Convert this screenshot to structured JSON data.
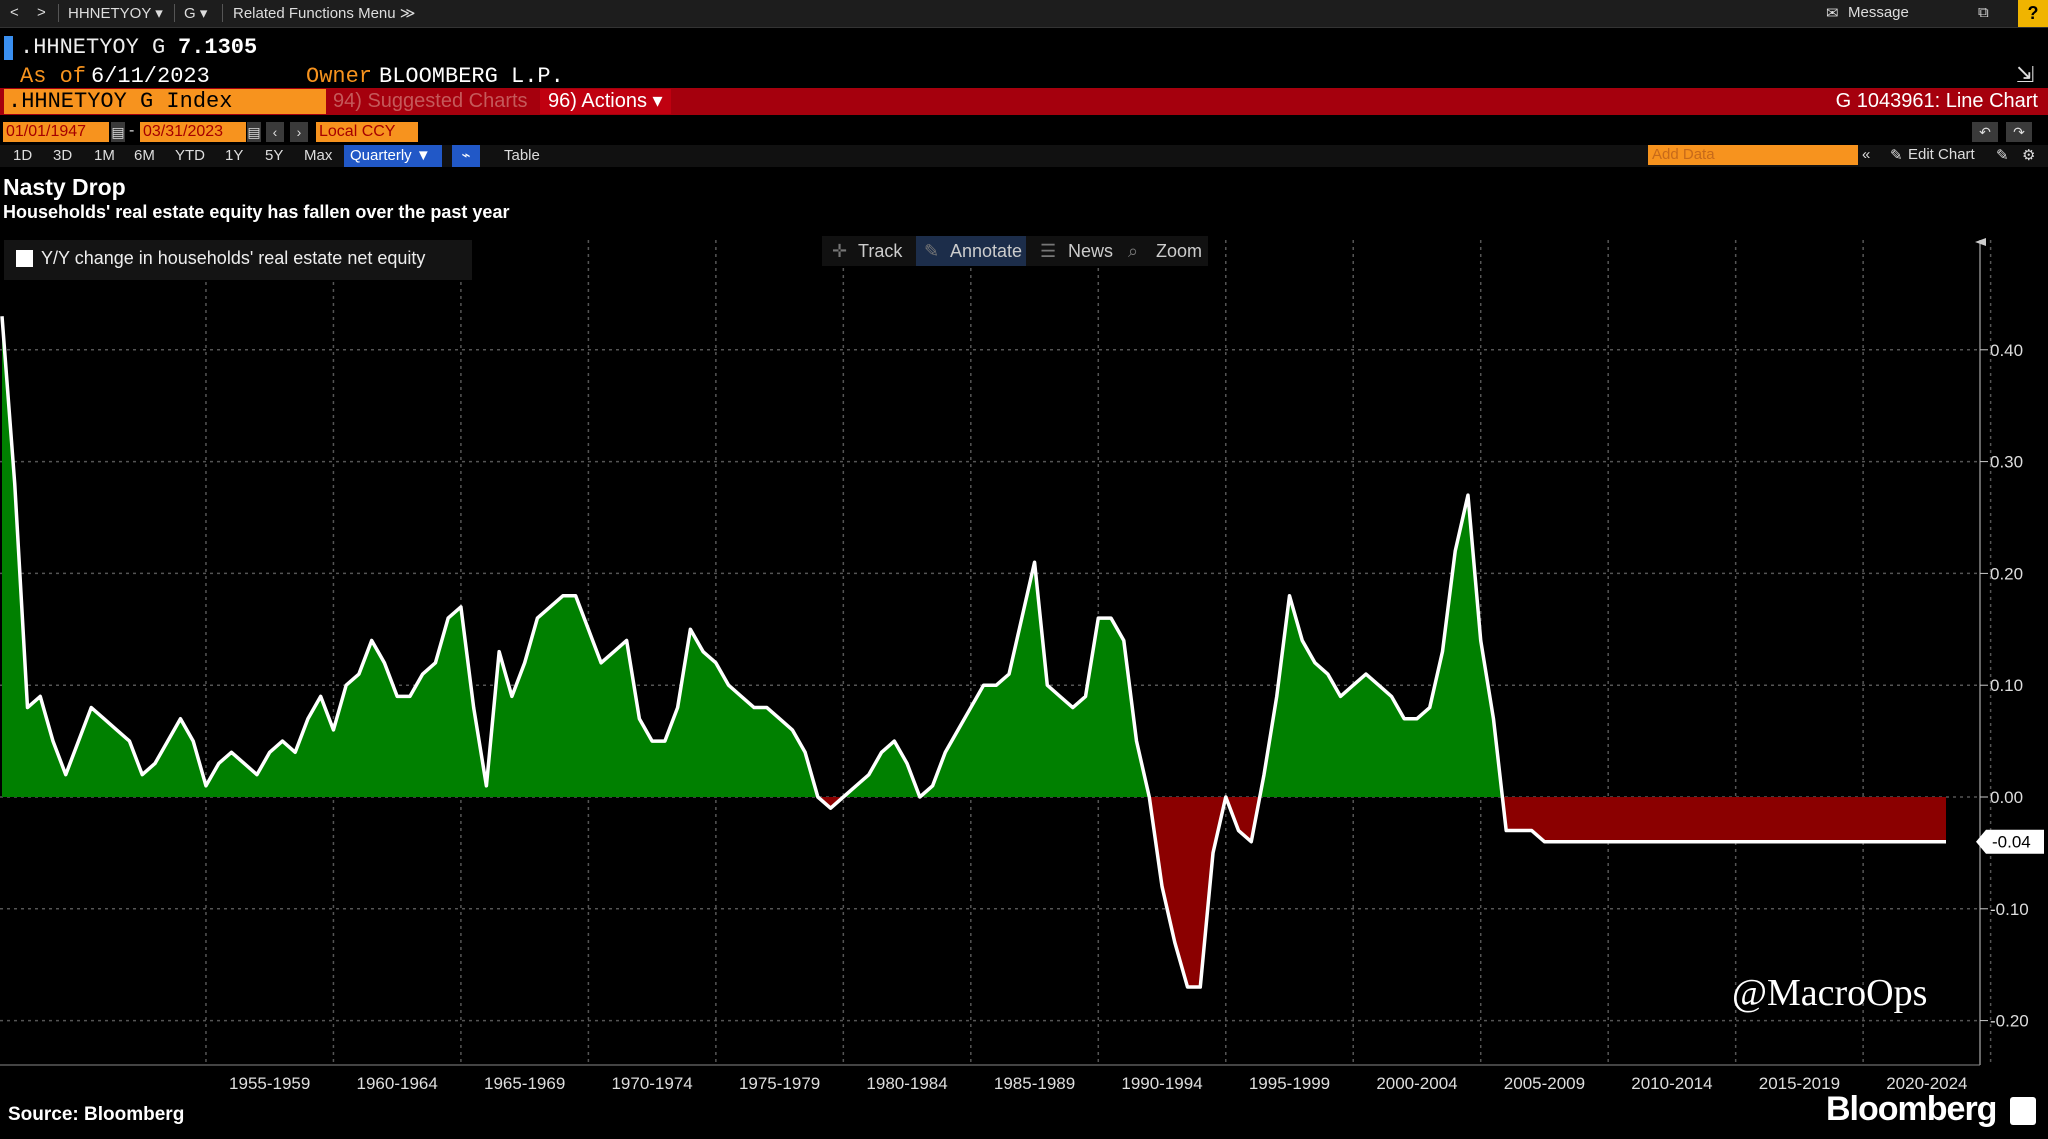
{
  "toolbar": {
    "nav_back": "<",
    "nav_fwd": ">",
    "ticker_menu": "HHNETYOY ▾",
    "func_menu": "G ▾",
    "related": "Related Functions Menu ≫",
    "message": "Message",
    "help": "?"
  },
  "header": {
    "ticker": ".HHNETYOY G",
    "value": "7.1305",
    "asof_label": "As of",
    "asof_date": "6/11/2023",
    "owner_label": "Owner",
    "owner": "BLOOMBERG L.P.",
    "index_name": ".HHNETYOY G Index",
    "suggested": "94) Suggested Charts",
    "actions": "96) Actions ▾",
    "chart_id": "G 1043961: Line Chart"
  },
  "controls": {
    "start_date": "01/01/1947",
    "dash": "-",
    "end_date": "03/31/2023",
    "currency": "Local CCY",
    "ranges": [
      "1D",
      "3D",
      "1M",
      "6M",
      "YTD",
      "1Y",
      "5Y",
      "Max"
    ],
    "frequency": "Quarterly ▼",
    "table": "Table",
    "add_data_placeholder": "Add Data",
    "edit_chart": "Edit Chart"
  },
  "chart_tools": {
    "track": "Track",
    "annotate": "Annotate",
    "news": "News",
    "zoom": "Zoom"
  },
  "chart_data": {
    "type": "area",
    "title": "Nasty Drop",
    "subtitle": "Households' real estate equity has fallen over the past year",
    "series_name": "Y/Y change in households' real estate net equity",
    "x_labels": [
      "1955-1959",
      "1960-1964",
      "1965-1969",
      "1970-1974",
      "1975-1979",
      "1980-1984",
      "1985-1989",
      "1990-1994",
      "1995-1999",
      "2000-2004",
      "2005-2009",
      "2010-2014",
      "2015-2019",
      "2020-2024"
    ],
    "y_ticks": [
      0.4,
      0.3,
      0.2,
      0.1,
      0.0,
      -0.1,
      -0.2
    ],
    "y_tick_labels": [
      "0.40",
      "0.30",
      "0.20",
      "0.10",
      "0.00",
      "-0.10",
      "-0.20"
    ],
    "ylim": [
      -0.25,
      0.5
    ],
    "last_value_label": "-0.04",
    "grid": true,
    "positive_color": "#008000",
    "negative_color": "#8b0000",
    "line_color": "#ffffff",
    "x": [
      1947.0,
      1947.5,
      1948.0,
      1948.5,
      1949.0,
      1949.5,
      1950.0,
      1950.5,
      1951.0,
      1951.5,
      1952.0,
      1952.5,
      1953.0,
      1953.5,
      1954.0,
      1954.5,
      1955.0,
      1955.5,
      1956.0,
      1956.5,
      1957.0,
      1957.5,
      1958.0,
      1958.5,
      1959.0,
      1959.5,
      1960.0,
      1960.5,
      1961.0,
      1961.5,
      1962.0,
      1962.5,
      1963.0,
      1963.5,
      1964.0,
      1964.5,
      1965.0,
      1965.5,
      1966.0,
      1966.5,
      1967.0,
      1967.5,
      1968.0,
      1968.5,
      1969.0,
      1969.5,
      1970.0,
      1970.5,
      1971.0,
      1971.5,
      1972.0,
      1972.5,
      1973.0,
      1973.5,
      1974.0,
      1974.5,
      1975.0,
      1975.5,
      1976.0,
      1976.5,
      1977.0,
      1977.5,
      1978.0,
      1978.5,
      1979.0,
      1979.5,
      1980.0,
      1980.5,
      1981.0,
      1981.5,
      1982.0,
      1982.5,
      1983.0,
      1983.5,
      1984.0,
      1984.5,
      1985.0,
      1985.5,
      1986.0,
      1986.5,
      1987.0,
      1987.5,
      1988.0,
      1988.5,
      1989.0,
      1989.5,
      1990.0,
      1990.5,
      1991.0,
      1991.5,
      1992.0,
      1992.5,
      1993.0,
      1993.5,
      1994.0,
      1994.5,
      1995.0,
      1995.5,
      1996.0,
      1996.5,
      1997.0,
      1997.5,
      1998.0,
      1998.5,
      1999.0,
      1999.5,
      2000.0,
      2000.5,
      2001.0,
      2001.5,
      2002.0,
      2002.5,
      2003.0,
      2003.5,
      2004.0,
      2004.5,
      2005.0,
      2005.5,
      2006.0,
      2006.5,
      2007.0,
      2007.5,
      2008.0,
      2008.5,
      2009.0,
      2009.5,
      2010.0,
      2010.5,
      2011.0,
      2011.5,
      2012.0,
      2012.5,
      2013.0,
      2013.5,
      2014.0,
      2014.5,
      2015.0,
      2015.5,
      2016.0,
      2016.5,
      2017.0,
      2017.5,
      2018.0,
      2018.5,
      2019.0,
      2019.5,
      2020.0,
      2020.5,
      2021.0,
      2021.5,
      2022.0,
      2022.25,
      2022.5,
      2022.75,
      2023.0,
      2023.25
    ],
    "values": [
      0.43,
      0.28,
      0.08,
      0.09,
      0.05,
      0.02,
      0.05,
      0.08,
      0.07,
      0.06,
      0.05,
      0.02,
      0.03,
      0.05,
      0.07,
      0.05,
      0.01,
      0.03,
      0.04,
      0.03,
      0.02,
      0.04,
      0.05,
      0.04,
      0.07,
      0.09,
      0.06,
      0.1,
      0.11,
      0.14,
      0.12,
      0.09,
      0.09,
      0.11,
      0.12,
      0.16,
      0.17,
      0.08,
      0.01,
      0.13,
      0.09,
      0.12,
      0.16,
      0.17,
      0.18,
      0.18,
      0.15,
      0.12,
      0.13,
      0.14,
      0.07,
      0.05,
      0.05,
      0.08,
      0.15,
      0.13,
      0.12,
      0.1,
      0.09,
      0.08,
      0.08,
      0.07,
      0.06,
      0.04,
      0.0,
      -0.01,
      0.0,
      0.01,
      0.02,
      0.04,
      0.05,
      0.03,
      0.0,
      0.01,
      0.04,
      0.06,
      0.08,
      0.1,
      0.1,
      0.11,
      0.16,
      0.21,
      0.1,
      0.09,
      0.08,
      0.09,
      0.16,
      0.16,
      0.14,
      0.05,
      0.0,
      -0.08,
      -0.13,
      -0.17,
      -0.17,
      -0.05,
      0.0,
      -0.03,
      -0.04,
      0.02,
      0.09,
      0.18,
      0.14,
      0.12,
      0.11,
      0.09,
      0.1,
      0.11,
      0.1,
      0.09,
      0.07,
      0.07,
      0.08,
      0.13,
      0.22,
      0.27,
      0.14,
      0.07,
      -0.03,
      -0.03,
      -0.03,
      -0.04,
      -0.04,
      -0.04,
      -0.04,
      -0.04,
      -0.04,
      -0.04,
      -0.04,
      -0.04,
      -0.04,
      -0.04,
      -0.04,
      -0.04,
      -0.04,
      -0.04,
      -0.04,
      -0.04,
      -0.04,
      -0.04,
      -0.04,
      -0.04,
      -0.04,
      -0.04,
      -0.04,
      -0.04,
      -0.04,
      -0.04,
      -0.04,
      -0.04,
      -0.04,
      -0.04,
      -0.04,
      -0.04,
      -0.04,
      -0.04
    ]
  },
  "footer": {
    "source": "Source: Bloomberg",
    "brand": "Bloomberg",
    "watermark": "@MacroOps"
  }
}
